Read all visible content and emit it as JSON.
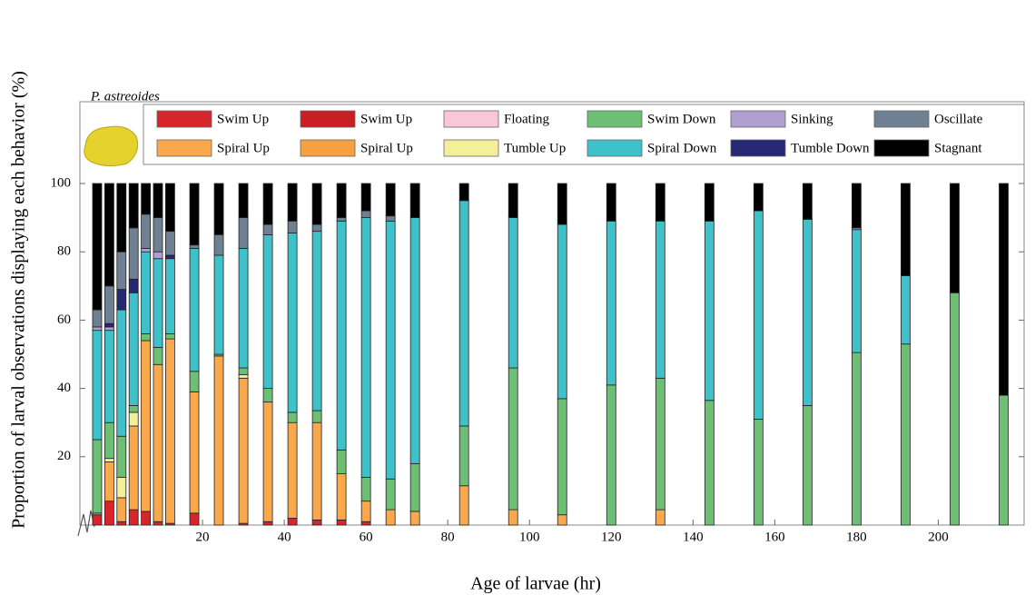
{
  "chart_data": {
    "type": "bar",
    "stacked": true,
    "annotation": "P. astreoides",
    "x_label": "Age of larvae (hr)",
    "y_label": "Proportion of larval observations displaying each behavior (%)",
    "x": [
      null,
      null,
      null,
      null,
      null,
      null,
      null,
      18,
      24,
      30,
      36,
      42,
      48,
      54,
      60,
      66,
      72,
      84,
      96,
      108,
      120,
      132,
      144,
      156,
      168,
      180,
      192,
      204,
      216
    ],
    "xlim": [
      0,
      221
    ],
    "xticks": [
      20,
      40,
      60,
      80,
      100,
      120,
      140,
      160,
      180,
      200
    ],
    "ylim": [
      0,
      100
    ],
    "yticks": [
      20,
      40,
      60,
      80,
      100
    ],
    "series": [
      {
        "name": "Swim Up",
        "color": "#d7262b",
        "values": [
          3,
          7,
          1,
          4.5,
          4,
          1,
          0.5,
          3.5,
          0,
          0.5,
          1,
          2,
          1.5,
          1.5,
          1,
          0,
          0,
          0,
          0,
          0,
          0,
          0,
          0,
          0,
          0,
          0,
          0,
          0,
          0
        ]
      },
      {
        "name": "Spiral Up",
        "color": "#f9a94b",
        "values": [
          0.5,
          11.5,
          7,
          24.5,
          50,
          46,
          54,
          35.5,
          49.5,
          42.5,
          35,
          28,
          28.5,
          13.5,
          6,
          4.5,
          4,
          11.5,
          4.5,
          3,
          0,
          4.5,
          0,
          0,
          0,
          0,
          0,
          0,
          0
        ]
      },
      {
        "name": "Swim Up",
        "color": "#c81e24",
        "values": [
          0,
          0,
          0,
          0,
          0,
          0,
          0,
          0,
          0,
          0,
          0,
          0,
          0,
          0,
          0,
          0,
          0,
          0,
          0,
          0,
          0,
          0,
          0,
          0,
          0,
          0,
          0,
          0,
          0
        ]
      },
      {
        "name": "Spiral Up",
        "color": "#f7a040",
        "values": [
          0,
          0,
          0,
          0,
          0,
          0,
          0,
          0,
          0,
          0,
          0,
          0,
          0,
          0,
          0,
          0,
          0,
          0,
          0,
          0,
          0,
          0,
          0,
          0,
          0,
          0,
          0,
          0,
          0
        ]
      },
      {
        "name": "Floating",
        "color": "#f9c8d8",
        "values": [
          0,
          0,
          0,
          0,
          0,
          0,
          0,
          0,
          0,
          0,
          0,
          0,
          0,
          0,
          0,
          0,
          0,
          0,
          0,
          0,
          0,
          0,
          0,
          0,
          0,
          0,
          0,
          0,
          0
        ]
      },
      {
        "name": "Tumble Up",
        "color": "#f4f09a",
        "values": [
          0,
          1,
          6,
          4,
          0,
          0,
          0,
          0,
          0,
          1,
          0,
          0,
          0,
          0,
          0,
          0,
          0,
          0,
          0,
          0,
          0,
          0,
          0,
          0,
          0,
          0,
          0,
          0,
          0
        ]
      },
      {
        "name": "Swim Down",
        "color": "#6dbf74",
        "values": [
          21.5,
          10.5,
          12,
          2,
          2,
          5,
          1.5,
          6,
          0.5,
          2,
          4,
          3,
          3.5,
          7,
          7,
          9,
          14,
          17.5,
          41.5,
          34,
          41,
          38.5,
          36.5,
          31,
          35,
          50.5,
          53,
          68,
          38
        ]
      },
      {
        "name": "Spiral Down",
        "color": "#3fc1c9",
        "values": [
          32,
          27,
          37,
          33,
          24,
          26,
          22,
          36,
          29,
          35,
          45,
          52.5,
          52.5,
          67,
          76,
          75.5,
          72,
          66,
          44,
          51,
          48,
          46,
          52.5,
          61,
          54.5,
          36,
          20,
          0,
          0
        ]
      },
      {
        "name": "Sinking",
        "color": "#b09fd1",
        "values": [
          1,
          1,
          0,
          0,
          1,
          2,
          0,
          0,
          0,
          0,
          0,
          0,
          0,
          0,
          0,
          0,
          0,
          0,
          0,
          0,
          0,
          0,
          0,
          0,
          0,
          0.5,
          0,
          0,
          0
        ]
      },
      {
        "name": "Tumble Down",
        "color": "#262873",
        "values": [
          0,
          1,
          6,
          4,
          0,
          0,
          1,
          0,
          0,
          0,
          0,
          0,
          0,
          0,
          0,
          0,
          0,
          0,
          0,
          0,
          0,
          0,
          0,
          0,
          0,
          0,
          0,
          0,
          0
        ]
      },
      {
        "name": "Oscillate",
        "color": "#6e8092",
        "values": [
          5,
          11,
          11,
          15,
          10,
          10,
          7,
          1,
          6,
          9,
          3,
          3.5,
          2,
          1,
          2,
          1.5,
          0,
          0,
          0,
          0,
          0,
          0,
          0,
          0,
          0,
          0,
          0,
          0,
          0
        ]
      },
      {
        "name": "Stagnant",
        "color": "#000000",
        "values": [
          37,
          30,
          20,
          13,
          9,
          10,
          14,
          18,
          15,
          10,
          12,
          11,
          12,
          10,
          8,
          9.5,
          10,
          5,
          10,
          12,
          11,
          11,
          11,
          8,
          10.5,
          13,
          27,
          32,
          62
        ]
      }
    ]
  }
}
